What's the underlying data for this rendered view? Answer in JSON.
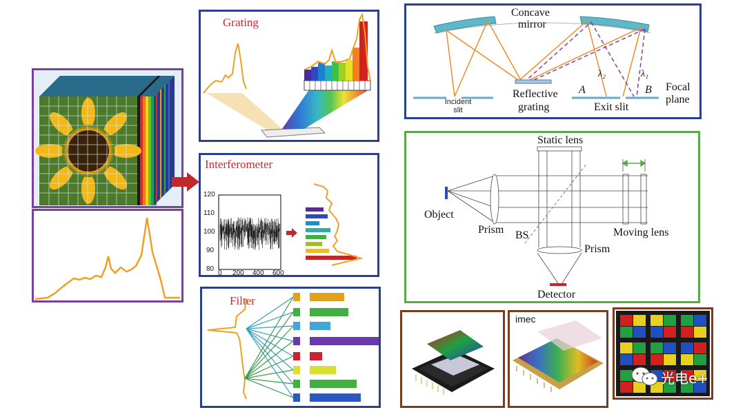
{
  "grating": {
    "title": "Grating"
  },
  "interferometer": {
    "title": "Interferometer",
    "y_ticks": [
      "120",
      "110",
      "100",
      "90",
      "80"
    ],
    "x_ticks": [
      "0",
      "200",
      "400",
      "600"
    ]
  },
  "filter": {
    "title": "Filter"
  },
  "concave": {
    "mirror_label_1": "Concave",
    "mirror_label_2": "mirror",
    "incident_slit_1": "Incident",
    "incident_slit_2": "slit",
    "reflective_1": "Reflective",
    "reflective_2": "grating",
    "exit_slit": "Exit slit",
    "focal_1": "Focal",
    "focal_2": "plane",
    "point_a": "A",
    "point_b": "B",
    "lambda_2": "λ₂",
    "lambda_1": "λ₁"
  },
  "fourier": {
    "static_lens": "Static lens",
    "object": "Object",
    "prism_left": "Prism",
    "bs": "BS",
    "prism_bottom": "Prism",
    "moving_lens": "Moving lens",
    "detector": "Detector"
  },
  "imec": {
    "label": "imec"
  },
  "watermark": {
    "text": "光电e+"
  },
  "colors": {
    "purple_frame": "#7b3fa0",
    "blue_frame": "#2b3f8f",
    "green_frame": "#5aa84a",
    "brown_frame": "#7a3b1e",
    "orange_line": "#f0a020",
    "red_title": "#d8232a"
  }
}
